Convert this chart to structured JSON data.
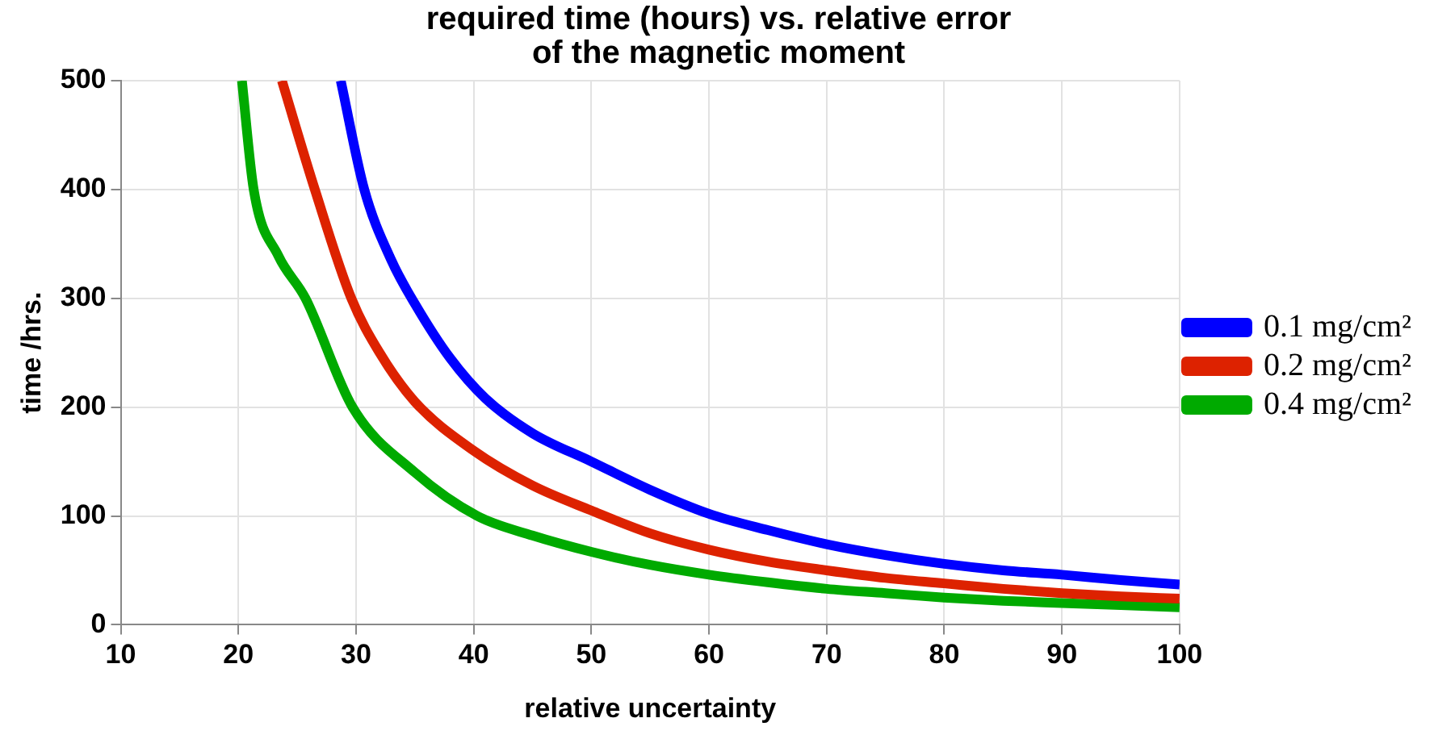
{
  "chart_data": {
    "type": "line",
    "title": "required time (hours) vs. relative error\nof the magnetic moment",
    "xlabel": "relative uncertainty",
    "ylabel": "time /hrs.",
    "xlim": [
      10,
      100
    ],
    "xticks": [
      10,
      20,
      30,
      40,
      50,
      60,
      70,
      80,
      90,
      100
    ],
    "ylim": [
      0,
      500
    ],
    "yticks": [
      0,
      100,
      200,
      300,
      400,
      500
    ],
    "grid": true,
    "legend": "right",
    "marker": "none",
    "line_style": "solid",
    "series": [
      {
        "name": "0.1 mg/cm²",
        "color": "#0000ff",
        "x": [
          28.7,
          30.7,
          33,
          35,
          38,
          41,
          45,
          50,
          55,
          60,
          65,
          70,
          75,
          80,
          85,
          90,
          95,
          100
        ],
        "values": [
          500,
          400,
          335,
          295,
          245,
          208,
          176,
          150,
          124,
          102,
          87,
          74,
          64,
          56,
          50,
          46,
          41,
          37
        ]
      },
      {
        "name": "0.2 mg/cm²",
        "color": "#dd2200",
        "x": [
          23.7,
          26.5,
          29.6,
          32,
          35,
          40,
          45,
          50,
          55,
          60,
          65,
          70,
          75,
          80,
          85,
          90,
          95,
          100
        ],
        "values": [
          500,
          400,
          300,
          250,
          205,
          160,
          128,
          105,
          84,
          69,
          58,
          50,
          43,
          38,
          33,
          29,
          26,
          24
        ]
      },
      {
        "name": "0.4 mg/cm²",
        "color": "#00aa00",
        "x": [
          20.3,
          21.3,
          23.4,
          25.7,
          29.7,
          35,
          40.3,
          45,
          50,
          55,
          60,
          65,
          70,
          75,
          80,
          85,
          90,
          95,
          100
        ],
        "values": [
          500,
          400,
          339,
          300,
          200,
          140,
          100,
          82,
          67,
          55,
          46,
          39,
          33,
          29,
          25,
          22,
          20,
          18,
          16
        ]
      }
    ]
  }
}
